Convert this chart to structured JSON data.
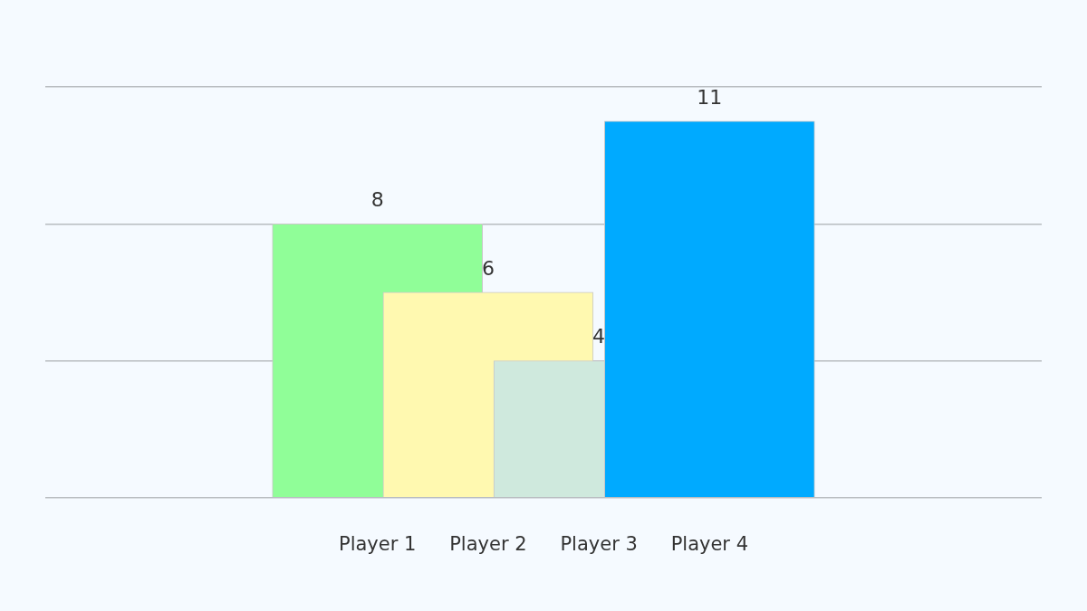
{
  "chart_data": {
    "type": "bar",
    "categories": [
      "Player 1",
      "Player 2",
      "Player 3",
      "Player 4"
    ],
    "values": [
      8,
      6,
      4,
      11
    ],
    "colors": [
      "#90fe98",
      "#fff9b0",
      "#cfe9dd",
      "#00aaff"
    ],
    "ylim": [
      0,
      12
    ],
    "yticks": [
      {
        "value": 0,
        "label": null
      },
      {
        "value": 4,
        "label": null
      },
      {
        "value": 8,
        "label": null
      },
      {
        "value": 12,
        "label": null
      }
    ],
    "tick_labels": "x",
    "grid": "y",
    "legend": false,
    "data_labels": true
  }
}
